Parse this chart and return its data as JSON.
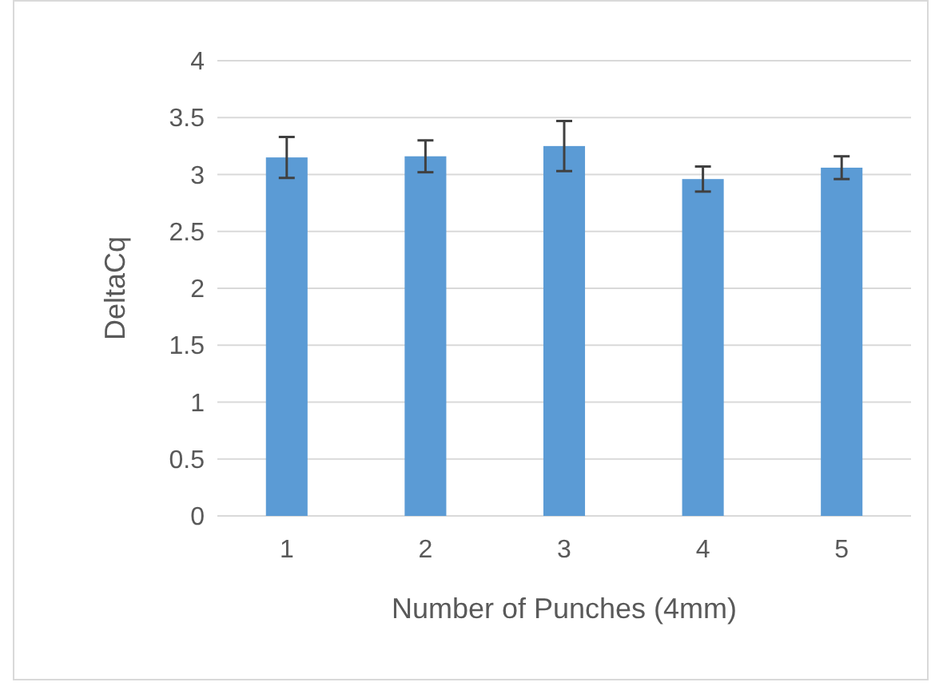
{
  "chart_data": {
    "type": "bar",
    "xlabel": "Number of Punches (4mm)",
    "ylabel": "DeltaCq",
    "categories": [
      "1",
      "2",
      "3",
      "4",
      "5"
    ],
    "values": [
      3.15,
      3.16,
      3.25,
      2.96,
      3.06
    ],
    "errors": [
      0.18,
      0.14,
      0.22,
      0.11,
      0.1
    ],
    "color": "#5b9bd5",
    "ylim": [
      0,
      4
    ],
    "yticks": [
      0,
      0.5,
      1,
      1.5,
      2,
      2.5,
      3,
      3.5,
      4
    ],
    "grid": "y"
  }
}
